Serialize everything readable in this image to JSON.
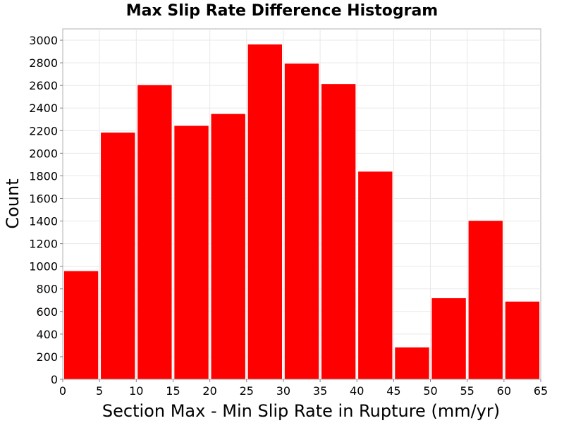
{
  "chart_data": {
    "type": "bar",
    "title": "Max Slip Rate Difference Histogram",
    "xlabel": "Section Max - Min Slip Rate in Rupture (mm/yr)",
    "ylabel": "Count",
    "bin_width": 5,
    "x": [
      2.5,
      7.5,
      12.5,
      17.5,
      22.5,
      27.5,
      32.5,
      37.5,
      42.5,
      47.5,
      52.5,
      57.5,
      62.5
    ],
    "values": [
      960,
      2185,
      2605,
      2245,
      2350,
      2965,
      2795,
      2615,
      1840,
      285,
      720,
      1405,
      690
    ],
    "xlim": [
      0,
      65
    ],
    "ylim": [
      0,
      3100
    ],
    "xticks": [
      0,
      5,
      10,
      15,
      20,
      25,
      30,
      35,
      40,
      45,
      50,
      55,
      60,
      65
    ],
    "yticks": [
      0,
      200,
      400,
      600,
      800,
      1000,
      1200,
      1400,
      1600,
      1800,
      2000,
      2200,
      2400,
      2600,
      2800,
      3000
    ],
    "grid": true,
    "bar_color": "#ff0000"
  }
}
